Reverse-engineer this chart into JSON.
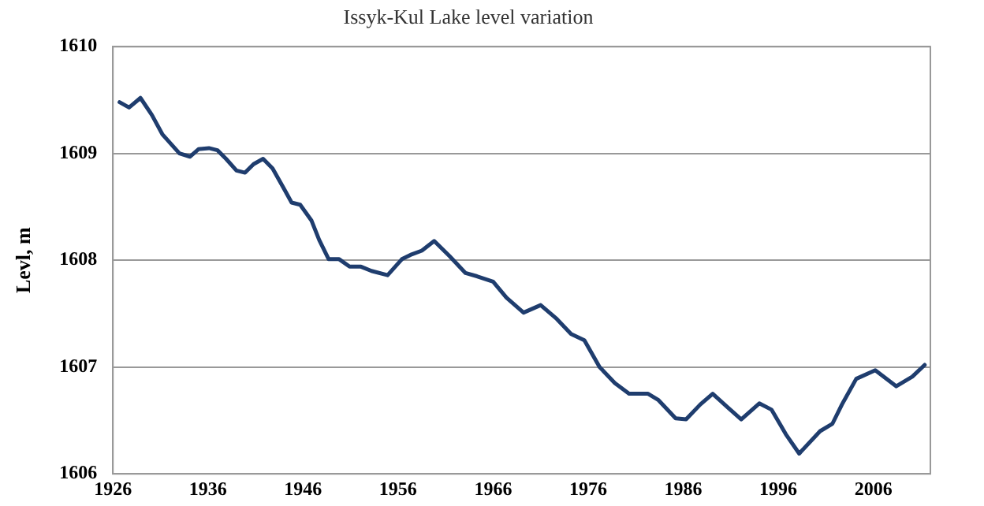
{
  "chart_data": {
    "type": "line",
    "title": "Issyk-Kul Lake level variation",
    "ylabel": "Levl, m",
    "x": [
      1926.7,
      1927.7,
      1928.9,
      1930.1,
      1931.2,
      1933,
      1934.1,
      1935,
      1936.1,
      1937,
      1937.9,
      1939,
      1939.9,
      1940.8,
      1941.8,
      1942.8,
      1944,
      1944.8,
      1945.7,
      1946.9,
      1947.7,
      1948.7,
      1949.8,
      1950.9,
      1952.1,
      1953.2,
      1954.9,
      1956.4,
      1957.3,
      1958.5,
      1959.8,
      1961.4,
      1963.1,
      1964.3,
      1966,
      1967.4,
      1969.2,
      1971,
      1972.7,
      1974.2,
      1975.6,
      1977.2,
      1978.8,
      1980.3,
      1982.3,
      1983.4,
      1985.2,
      1986.3,
      1987.8,
      1989.1,
      1990.7,
      1992.1,
      1994,
      1995.3,
      1996.8,
      1998.2,
      2000.4,
      2001.7,
      2002.7,
      2004.2,
      2006.2,
      2008.4,
      2010.1,
      2011.4
    ],
    "series": [
      {
        "color": "#1f3d6e",
        "values": [
          1609.48,
          1609.43,
          1609.52,
          1609.36,
          1609.18,
          1609.0,
          1608.97,
          1609.04,
          1609.05,
          1609.03,
          1608.95,
          1608.84,
          1608.82,
          1608.9,
          1608.95,
          1608.86,
          1608.67,
          1608.54,
          1608.52,
          1608.37,
          1608.19,
          1608.01,
          1608.01,
          1607.94,
          1607.94,
          1607.9,
          1607.86,
          1608.01,
          1608.05,
          1608.09,
          1608.18,
          1608.04,
          1607.88,
          1607.85,
          1607.8,
          1607.65,
          1607.51,
          1607.58,
          1607.45,
          1607.31,
          1607.25,
          1607.0,
          1606.85,
          1606.75,
          1606.75,
          1606.69,
          1606.52,
          1606.51,
          1606.65,
          1606.75,
          1606.62,
          1606.51,
          1606.66,
          1606.6,
          1606.37,
          1606.19,
          1606.4,
          1606.47,
          1606.65,
          1606.89,
          1606.97,
          1606.82,
          1606.91,
          1607.02
        ]
      }
    ],
    "xlim": [
      1926,
      2012
    ],
    "xticks": [
      1926,
      1936,
      1946,
      1956,
      1966,
      1976,
      1986,
      1996,
      2006
    ],
    "ylim": [
      1606,
      1610
    ],
    "yticks": [
      1606,
      1607,
      1608,
      1609,
      1610
    ],
    "grid": "y",
    "legend": false,
    "marker": "none",
    "line_style": "solid"
  }
}
